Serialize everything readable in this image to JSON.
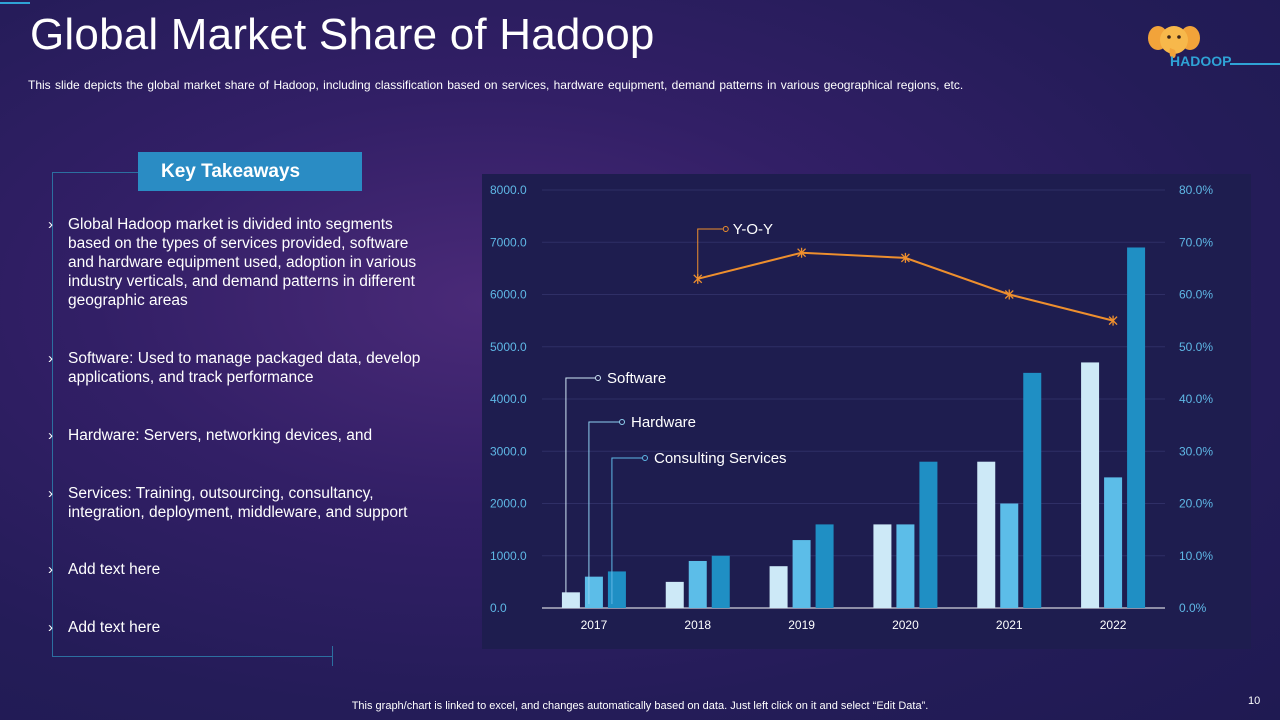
{
  "slide": {
    "title": "Global Market Share of Hadoop",
    "subtitle": "This slide depicts the global market share of Hadoop, including classification based on services, hardware equipment, demand patterns in various geographical regions, etc.",
    "logo_text": "HADOOP",
    "footer": "This graph/chart is linked to excel, and changes automatically based on data. Just left click on it and select “Edit Data”.",
    "page_number": "10"
  },
  "takeaways": {
    "header": "Key Takeaways",
    "items": [
      {
        "text": "Global Hadoop market is divided into segments based on the types of services provided, software and hardware equipment used, adoption in various industry verticals, and demand patterns in different geographic areas"
      },
      {
        "text": "Software: Used to manage packaged data, develop applications, and track performance"
      },
      {
        "text": "Hardware: Servers, networking devices, and"
      },
      {
        "text": "Services: Training, outsourcing, consultancy, integration, deployment, middleware, and support"
      },
      {
        "text": "Add text here"
      },
      {
        "text": "Add text here"
      }
    ]
  },
  "colors": {
    "software": "#cde9f7",
    "hardware": "#5cbde8",
    "consulting": "#1f8fc4",
    "yoy": "#ee8f2e",
    "gridline": "#2f2f66",
    "axis_tick": "#5fb8e6"
  },
  "chart_data": {
    "type": "bar",
    "categories": [
      "2017",
      "2018",
      "2019",
      "2020",
      "2021",
      "2022"
    ],
    "series": [
      {
        "name": "Software",
        "values": [
          300,
          500,
          800,
          1600,
          2800,
          4700
        ]
      },
      {
        "name": "Hardware",
        "values": [
          600,
          900,
          1300,
          1600,
          2000,
          2500
        ]
      },
      {
        "name": "Consulting Services",
        "values": [
          700,
          1000,
          1600,
          2800,
          4500,
          6900
        ]
      }
    ],
    "line_series": {
      "name": "Y-O-Y",
      "axis": "right",
      "values": [
        63,
        68,
        67,
        60,
        55
      ],
      "categories": [
        "2018",
        "2019",
        "2020",
        "2021",
        "2022"
      ]
    },
    "ylim_left": [
      0,
      8000
    ],
    "ylim_right": [
      0,
      80
    ],
    "left_ticks": [
      "0.0",
      "1000.0",
      "2000.0",
      "3000.0",
      "4000.0",
      "5000.0",
      "6000.0",
      "7000.0",
      "8000.0"
    ],
    "right_ticks": [
      "0.0%",
      "10.0%",
      "20.0%",
      "30.0%",
      "40.0%",
      "50.0%",
      "60.0%",
      "70.0%",
      "80.0%"
    ],
    "callouts": [
      "Software",
      "Hardware",
      "Consulting Services",
      "Y-O-Y"
    ],
    "grid": true
  }
}
